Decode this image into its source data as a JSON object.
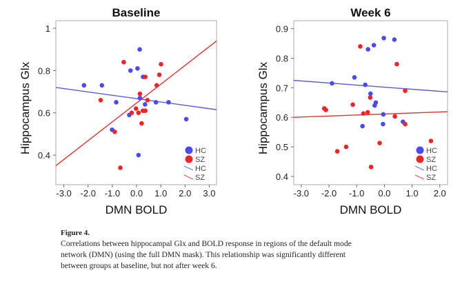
{
  "colors": {
    "HC": "#4a4af0",
    "SZ": "#e82828",
    "HC_line": "#5a5ae0",
    "SZ_line": "#e03030"
  },
  "chart_data": [
    {
      "type": "scatter",
      "title": "Baseline",
      "xlabel": "DMN BOLD",
      "ylabel": "Hippocampus Glx",
      "xlim": [
        -3.33,
        3.3
      ],
      "ylim": [
        0.26,
        1.036
      ],
      "xticks": [
        "-3.0",
        "-2.0",
        "-1.0",
        "0.0",
        "1.0",
        "2.0",
        "3.0"
      ],
      "xtick_values": [
        -3,
        -2,
        -1,
        0,
        1,
        2,
        3
      ],
      "yticks": [
        "1",
        "0.8",
        "0.6",
        "0.4"
      ],
      "ytick_values": [
        1,
        0.8,
        0.6,
        0.4
      ],
      "legend": {
        "position": "bottom-right",
        "entries": [
          "HC",
          "SZ",
          "HC",
          "SZ"
        ]
      },
      "series": [
        {
          "name": "HC",
          "kind": "points",
          "x": [
            0.13,
            -0.25,
            0.04,
            0.27,
            -2.17,
            -1.43,
            0.14,
            -0.84,
            0.35,
            0.8,
            1.32,
            -0.3,
            2.05,
            -1.01,
            0.08
          ],
          "y": [
            0.9,
            0.8,
            0.81,
            0.77,
            0.73,
            0.73,
            0.67,
            0.65,
            0.64,
            0.65,
            0.65,
            0.59,
            0.57,
            0.52,
            0.4
          ]
        },
        {
          "name": "SZ",
          "kind": "points",
          "x": [
            -0.53,
            1.01,
            0.94,
            0.36,
            0.83,
            0.14,
            0.45,
            -1.48,
            -0.02,
            -0.2,
            0.08,
            0.26,
            0.36,
            0.21,
            -0.9,
            -0.67
          ],
          "y": [
            0.84,
            0.83,
            0.78,
            0.77,
            0.73,
            0.69,
            0.66,
            0.66,
            0.62,
            0.6,
            0.6,
            0.61,
            0.61,
            0.55,
            0.51,
            0.34
          ]
        },
        {
          "name": "HC",
          "kind": "fit",
          "x": [
            -3.33,
            3.3
          ],
          "y": [
            0.72,
            0.615
          ]
        },
        {
          "name": "SZ",
          "kind": "fit",
          "x": [
            -3.33,
            3.3
          ],
          "y": [
            0.35,
            0.94
          ]
        }
      ]
    },
    {
      "type": "scatter",
      "title": "Week 6",
      "xlabel": "DMN BOLD",
      "ylabel": "Hippocampus Glx",
      "xlim": [
        -3.27,
        2.28
      ],
      "ylim": [
        0.372,
        0.927
      ],
      "xticks": [
        "-3.0",
        "-2.0",
        "-1.0",
        "0.0",
        "1.0",
        "2.0"
      ],
      "xtick_values": [
        -3,
        -2,
        -1,
        0,
        1,
        2
      ],
      "yticks": [
        "0.9",
        "0.8",
        "0.7",
        "0.6",
        "0.5",
        "0.4"
      ],
      "ytick_values": [
        0.9,
        0.8,
        0.7,
        0.6,
        0.5,
        0.4
      ],
      "legend": {
        "position": "bottom-right",
        "entries": [
          "HC",
          "SZ",
          "HC",
          "SZ"
        ]
      },
      "series": [
        {
          "name": "HC",
          "kind": "points",
          "x": [
            -0.02,
            0.36,
            -0.38,
            -0.59,
            -1.08,
            -1.89,
            -0.69,
            -0.5,
            -0.31,
            -0.35,
            -0.04,
            -0.05,
            0.67,
            -0.79
          ],
          "y": [
            0.868,
            0.863,
            0.844,
            0.83,
            0.735,
            0.715,
            0.71,
            0.68,
            0.65,
            0.64,
            0.61,
            0.577,
            0.585,
            0.57
          ]
        },
        {
          "name": "SZ",
          "kind": "points",
          "x": [
            -0.87,
            0.45,
            0.75,
            -0.51,
            -1.14,
            -2.17,
            -2.11,
            -0.6,
            -0.76,
            0.38,
            0.75,
            1.68,
            -0.17,
            -1.38,
            -1.7,
            -0.48
          ],
          "y": [
            0.84,
            0.78,
            0.69,
            0.667,
            0.643,
            0.63,
            0.625,
            0.617,
            0.613,
            0.603,
            0.577,
            0.52,
            0.513,
            0.5,
            0.485,
            0.432
          ]
        },
        {
          "name": "HC",
          "kind": "fit",
          "x": [
            -3.27,
            2.28
          ],
          "y": [
            0.725,
            0.686
          ]
        },
        {
          "name": "SZ",
          "kind": "fit",
          "x": [
            -3.27,
            2.28
          ],
          "y": [
            0.6,
            0.619
          ]
        }
      ]
    }
  ],
  "caption": {
    "label": "Figure 4.",
    "lines": [
      "Correlations between hippocampal Glx and BOLD response in regions of the default mode",
      "network (DMN) (using the full DMN mask). This relationship was significantly different",
      "between groups at baseline, but not after week 6."
    ]
  }
}
